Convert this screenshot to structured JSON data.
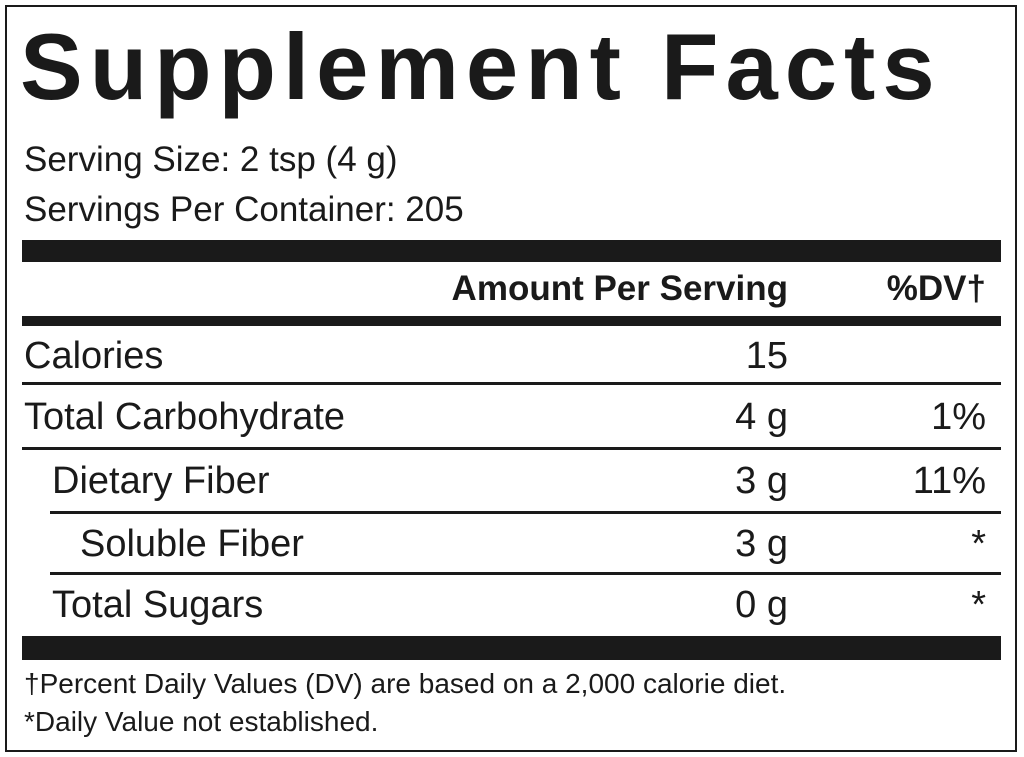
{
  "title": "Supplement Facts",
  "serving_size": "Serving Size: 2 tsp (4 g)",
  "servings_per_container": "Servings Per Container: 205",
  "table": {
    "header": {
      "amount": "Amount Per Serving",
      "dv": "%DV†"
    },
    "rows": [
      {
        "name": "Calories",
        "amount": "15"
      },
      {
        "name": "Total Carbohydrate",
        "amount": "4 g",
        "dv": "1%"
      },
      {
        "name": "Dietary Fiber",
        "amount": "3 g",
        "dv": "11%"
      },
      {
        "name": "Soluble Fiber",
        "amount": "3 g",
        "dv": "*"
      },
      {
        "name": "Total Sugars",
        "amount": "0 g",
        "dv": "*"
      }
    ]
  },
  "footnotes": [
    "†Percent Daily Values (DV) are based on a 2,000 calorie diet.",
    "*Daily Value not established."
  ]
}
